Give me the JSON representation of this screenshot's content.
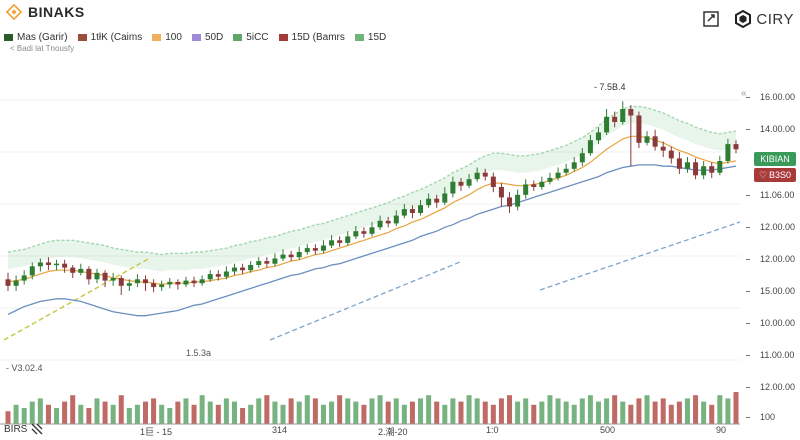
{
  "app": {
    "title": "BINAKS",
    "city_label": "CIRY"
  },
  "colors": {
    "up": "#2e7d32",
    "down": "#8b3a3a",
    "ma_short": "#e8a33d",
    "ma_long": "#6b8fc0",
    "band": "#3fae5a",
    "badge_up": "#3a9a5a",
    "badge_down": "#a83a3a",
    "accent": "#f0a030"
  },
  "icons": {
    "logo": "binance-diamond-icon",
    "screenshot": "screenshot-icon",
    "city": "hexagon-icon",
    "corner": "chart-settings-icon"
  },
  "legend": [
    {
      "label": "Mas (Garir)",
      "color": "#2b5b2b"
    },
    {
      "label": "1tłK (Caims",
      "color": "#9b4d3c"
    },
    {
      "label": "100",
      "color": "#f0b060"
    },
    {
      "label": "50D",
      "color": "#a08ad6"
    },
    {
      "label": "5iCC",
      "color": "#5fa66a"
    },
    {
      "label": "15D (Bamrs",
      "color": "#a33b3b"
    },
    {
      "label": "15D",
      "color": "#6fb57a"
    }
  ],
  "sublegend": "< Badi lat Tnousfy",
  "annotations": {
    "high": "- 7.5B.4",
    "low": "1.5.3a",
    "left": "- V3.02.4"
  },
  "badges": {
    "upper": "KIBIAN",
    "lower": "B3S0"
  },
  "y_axis": [
    "16.00.00",
    "14.00.00",
    "11.06.00",
    "12.00.00",
    "12.00.00",
    "15.00.00",
    "10.00.00",
    "11.00.00",
    "12.00.00",
    "100"
  ],
  "x_axis": [
    "1巨 - 15",
    "314",
    "2.潮-20",
    "1:0",
    "500",
    "90"
  ],
  "footer": {
    "label": "BIRS"
  },
  "chart_data": {
    "type": "candlestick",
    "series": [
      {
        "name": "Mas (Garir)",
        "type": "ohlc"
      },
      {
        "name": "100",
        "type": "line"
      },
      {
        "name": "50D",
        "type": "line"
      }
    ],
    "candles": [
      [
        15.9,
        15.4,
        16.4,
        15.0
      ],
      [
        15.4,
        15.8,
        16.2,
        15.0
      ],
      [
        15.8,
        16.2,
        16.6,
        15.5
      ],
      [
        16.2,
        16.9,
        17.2,
        15.9
      ],
      [
        16.9,
        17.2,
        17.5,
        16.5
      ],
      [
        17.2,
        17.0,
        17.6,
        16.6
      ],
      [
        17.0,
        17.1,
        17.4,
        16.6
      ],
      [
        17.1,
        16.8,
        17.4,
        16.4
      ],
      [
        16.8,
        16.4,
        17.0,
        16.0
      ],
      [
        16.4,
        16.7,
        17.1,
        16.2
      ],
      [
        16.7,
        15.9,
        16.9,
        15.5
      ],
      [
        15.9,
        16.4,
        16.7,
        15.6
      ],
      [
        16.4,
        15.8,
        16.6,
        15.3
      ],
      [
        15.8,
        16.0,
        16.4,
        15.4
      ],
      [
        16.0,
        15.4,
        16.2,
        14.7
      ],
      [
        15.4,
        15.6,
        15.9,
        15.0
      ],
      [
        15.6,
        15.9,
        16.3,
        15.3
      ],
      [
        15.9,
        15.6,
        16.2,
        15.0
      ],
      [
        15.6,
        15.3,
        15.9,
        14.9
      ],
      [
        15.3,
        15.5,
        15.8,
        15.0
      ],
      [
        15.5,
        15.7,
        16.0,
        15.2
      ],
      [
        15.7,
        15.5,
        15.9,
        15.1
      ],
      [
        15.5,
        15.8,
        16.1,
        15.3
      ],
      [
        15.8,
        15.6,
        16.1,
        15.3
      ],
      [
        15.6,
        15.9,
        16.2,
        15.4
      ],
      [
        15.9,
        16.3,
        16.6,
        15.7
      ],
      [
        16.3,
        16.1,
        16.6,
        15.8
      ],
      [
        16.1,
        16.5,
        16.9,
        15.9
      ],
      [
        16.5,
        16.8,
        17.1,
        16.2
      ],
      [
        16.8,
        16.6,
        17.1,
        16.3
      ],
      [
        16.6,
        17.0,
        17.3,
        16.4
      ],
      [
        17.0,
        17.3,
        17.6,
        16.8
      ],
      [
        17.3,
        17.1,
        17.6,
        16.8
      ],
      [
        17.1,
        17.5,
        17.9,
        16.9
      ],
      [
        17.5,
        17.8,
        18.2,
        17.3
      ],
      [
        17.8,
        17.6,
        18.1,
        17.3
      ],
      [
        17.6,
        18.0,
        18.4,
        17.4
      ],
      [
        18.0,
        18.3,
        18.6,
        17.8
      ],
      [
        18.3,
        18.1,
        18.6,
        17.8
      ],
      [
        18.1,
        18.5,
        18.9,
        17.9
      ],
      [
        18.5,
        18.9,
        19.3,
        18.3
      ],
      [
        18.9,
        18.7,
        19.2,
        18.4
      ],
      [
        18.7,
        19.2,
        19.6,
        18.5
      ],
      [
        19.2,
        19.6,
        20.0,
        19.0
      ],
      [
        19.6,
        19.4,
        19.9,
        19.1
      ],
      [
        19.4,
        19.9,
        20.3,
        19.2
      ],
      [
        19.9,
        20.4,
        20.8,
        19.7
      ],
      [
        20.4,
        20.2,
        20.7,
        19.9
      ],
      [
        20.2,
        20.8,
        21.2,
        20.0
      ],
      [
        20.8,
        21.3,
        21.7,
        20.6
      ],
      [
        21.3,
        21.0,
        21.6,
        20.6
      ],
      [
        21.0,
        21.6,
        22.0,
        20.8
      ],
      [
        21.6,
        22.1,
        22.5,
        21.4
      ],
      [
        22.1,
        21.8,
        22.4,
        21.4
      ],
      [
        21.8,
        22.5,
        23.0,
        21.6
      ],
      [
        22.5,
        23.4,
        23.8,
        22.2
      ],
      [
        23.4,
        23.1,
        23.7,
        22.7
      ],
      [
        23.1,
        23.6,
        24.0,
        22.9
      ],
      [
        23.6,
        24.1,
        24.5,
        23.4
      ],
      [
        24.1,
        23.8,
        24.4,
        23.5
      ],
      [
        23.8,
        23.0,
        24.1,
        22.6
      ],
      [
        23.0,
        22.2,
        23.3,
        21.5
      ],
      [
        22.2,
        21.5,
        22.6,
        21.0
      ],
      [
        21.5,
        22.4,
        22.8,
        21.2
      ],
      [
        22.4,
        23.2,
        23.6,
        22.1
      ],
      [
        23.2,
        23.0,
        23.5,
        22.7
      ],
      [
        23.0,
        23.4,
        23.8,
        22.8
      ],
      [
        23.4,
        23.7,
        24.1,
        23.2
      ],
      [
        23.7,
        24.1,
        24.5,
        23.5
      ],
      [
        24.1,
        24.4,
        24.8,
        23.9
      ],
      [
        24.4,
        24.9,
        25.3,
        24.2
      ],
      [
        24.9,
        25.6,
        26.0,
        24.6
      ],
      [
        25.6,
        26.6,
        27.0,
        25.4
      ],
      [
        26.6,
        27.2,
        27.6,
        26.3
      ],
      [
        27.2,
        28.4,
        29.0,
        27.0
      ],
      [
        28.4,
        28.0,
        28.8,
        27.6
      ],
      [
        28.0,
        29.0,
        29.6,
        27.8
      ],
      [
        29.0,
        28.5,
        29.3,
        24.6
      ],
      [
        28.5,
        26.4,
        28.8,
        26.0
      ],
      [
        26.4,
        26.9,
        27.3,
        26.2
      ],
      [
        26.9,
        26.1,
        27.4,
        25.8
      ],
      [
        26.1,
        25.8,
        26.5,
        25.3
      ],
      [
        25.8,
        25.2,
        26.1,
        24.8
      ],
      [
        25.2,
        24.4,
        25.7,
        24.0
      ],
      [
        24.4,
        24.9,
        25.3,
        24.1
      ],
      [
        24.9,
        23.9,
        25.2,
        23.6
      ],
      [
        23.9,
        24.6,
        25.0,
        23.6
      ],
      [
        24.6,
        24.1,
        24.9,
        23.7
      ],
      [
        24.1,
        25.0,
        25.4,
        23.9
      ],
      [
        25.0,
        26.3,
        26.7,
        24.8
      ],
      [
        26.3,
        25.9,
        26.6,
        25.6
      ]
    ],
    "ma_short": [
      15.7,
      15.8,
      15.9,
      16.1,
      16.3,
      16.5,
      16.6,
      16.6,
      16.6,
      16.5,
      16.4,
      16.3,
      16.2,
      16.0,
      15.9,
      15.8,
      15.7,
      15.7,
      15.6,
      15.5,
      15.6,
      15.6,
      15.6,
      15.7,
      15.7,
      15.8,
      15.9,
      16.0,
      16.2,
      16.3,
      16.5,
      16.6,
      16.8,
      16.9,
      17.1,
      17.3,
      17.4,
      17.6,
      17.8,
      17.9,
      18.1,
      18.3,
      18.5,
      18.7,
      18.9,
      19.1,
      19.3,
      19.5,
      19.8,
      20.0,
      20.3,
      20.5,
      20.8,
      21.1,
      21.4,
      21.8,
      22.1,
      22.4,
      22.8,
      23.1,
      23.3,
      23.3,
      23.2,
      23.1,
      23.1,
      23.2,
      23.3,
      23.5,
      23.7,
      23.9,
      24.2,
      24.5,
      24.9,
      25.4,
      25.9,
      26.3,
      26.7,
      26.9,
      26.9,
      26.8,
      26.6,
      26.4,
      26.1,
      25.8,
      25.6,
      25.3,
      25.1,
      24.9,
      24.8,
      24.9,
      25.0
    ],
    "ma_long": [
      13.2,
      13.5,
      13.8,
      14.0,
      14.2,
      14.3,
      14.4,
      14.4,
      14.3,
      14.2,
      14.0,
      13.8,
      13.6,
      13.4,
      13.3,
      13.2,
      13.1,
      13.1,
      13.2,
      13.3,
      13.4,
      13.5,
      13.7,
      13.9,
      14.0,
      14.2,
      14.4,
      14.6,
      14.8,
      15.0,
      15.2,
      15.4,
      15.6,
      15.8,
      16.0,
      16.2,
      16.3,
      16.5,
      16.7,
      16.8,
      17.0,
      17.1,
      17.3,
      17.5,
      17.7,
      17.9,
      18.1,
      18.3,
      18.5,
      18.7,
      18.9,
      19.2,
      19.4,
      19.6,
      19.9,
      20.1,
      20.4,
      20.6,
      20.9,
      21.1,
      21.3,
      21.5,
      21.6,
      21.8,
      22.0,
      22.2,
      22.4,
      22.6,
      22.8,
      23.0,
      23.2,
      23.4,
      23.6,
      23.8,
      24.1,
      24.3,
      24.5,
      24.6,
      24.7,
      24.7,
      24.7,
      24.6,
      24.6,
      24.5,
      24.4,
      24.3,
      24.3,
      24.3,
      24.4,
      24.5,
      24.6
    ],
    "volume": [
      4,
      6,
      5,
      7,
      8,
      6,
      5,
      7,
      9,
      6,
      5,
      8,
      7,
      6,
      9,
      5,
      6,
      7,
      8,
      6,
      5,
      7,
      8,
      6,
      9,
      7,
      6,
      8,
      7,
      5,
      6,
      8,
      9,
      7,
      6,
      8,
      7,
      9,
      8,
      6,
      7,
      9,
      8,
      7,
      6,
      8,
      9,
      7,
      8,
      6,
      7,
      8,
      9,
      7,
      6,
      8,
      7,
      9,
      8,
      7,
      6,
      8,
      9,
      7,
      8,
      6,
      7,
      9,
      8,
      7,
      6,
      8,
      9,
      7,
      8,
      9,
      7,
      6,
      8,
      9,
      7,
      8,
      6,
      7,
      8,
      9,
      7,
      6,
      9,
      8,
      10
    ]
  }
}
